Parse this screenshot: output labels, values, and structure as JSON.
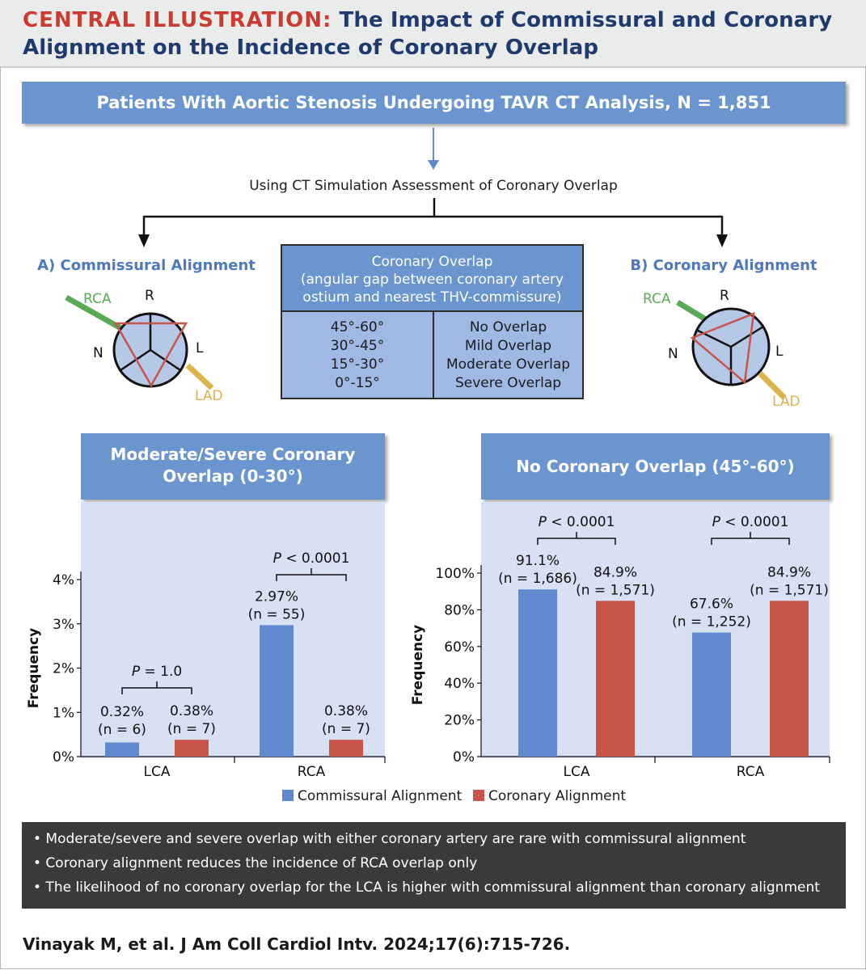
{
  "header": {
    "kicker": "CENTRAL ILLUSTRATION:",
    "title_line1": "The Impact of Commissural and Coronary",
    "title_line2": "Alignment on the Incidence of Coronary Overlap"
  },
  "top_box": "Patients With Aortic Stenosis Undergoing TAVR CT Analysis, N = 1,851",
  "method_text": "Using CT Simulation Assessment of Coronary Overlap",
  "diagram_a": {
    "title": "A) Commissural Alignment",
    "rca": "RCA",
    "lad": "LAD",
    "r": "R",
    "n": "N",
    "l": "L"
  },
  "diagram_b": {
    "title": "B) Coronary Alignment",
    "rca": "RCA",
    "lad": "LAD",
    "r": "R",
    "n": "N",
    "l": "L"
  },
  "overlap_table": {
    "header_line1": "Coronary Overlap",
    "header_line2": "(angular gap between coronary artery",
    "header_line3": "ostium and nearest THV-commissure)",
    "angles": [
      "45°-60°",
      "30°-45°",
      "15°-30°",
      "0°-15°"
    ],
    "categories": [
      "No Overlap",
      "Mild Overlap",
      "Moderate Overlap",
      "Severe Overlap"
    ]
  },
  "colors": {
    "commissural": "#5f8ad0",
    "coronary": "#c9554a",
    "header_blue": "#6a95cf",
    "panel_bg": "#d7e1f3",
    "title_red": "#cc3b2f",
    "title_navy": "#1f3a6e",
    "rca_green": "#5aaa55",
    "lad_yellow": "#dcb44c"
  },
  "chart_data": [
    {
      "type": "bar",
      "title_line1": "Moderate/Severe Coronary",
      "title_line2": "Overlap (0-30°)",
      "categories": [
        "LCA",
        "RCA"
      ],
      "ylabel": "Frequency",
      "ylim": [
        0,
        4
      ],
      "yticks": [
        0,
        1,
        2,
        3,
        4
      ],
      "ytick_labels": [
        "0%",
        "1%",
        "2%",
        "3%",
        "4%"
      ],
      "series": [
        {
          "name": "Commissural Alignment",
          "values": [
            0.32,
            2.97
          ],
          "labels": [
            "0.32%",
            "2.97%"
          ],
          "n_labels": [
            "(n = 6)",
            "(n = 55)"
          ]
        },
        {
          "name": "Coronary Alignment",
          "values": [
            0.38,
            0.38
          ],
          "labels": [
            "0.38%",
            "0.38%"
          ],
          "n_labels": [
            "(n = 7)",
            "(n = 7)"
          ]
        }
      ],
      "p_values": [
        {
          "p": "P",
          "text": " = 1.0"
        },
        {
          "p": "P",
          "text": " < 0.0001"
        }
      ]
    },
    {
      "type": "bar",
      "title_line1": "No Coronary Overlap (45°-60°)",
      "categories": [
        "LCA",
        "RCA"
      ],
      "ylabel": "Frequency",
      "ylim": [
        0,
        100
      ],
      "yticks": [
        0,
        20,
        40,
        60,
        80,
        100
      ],
      "ytick_labels": [
        "0%",
        "20%",
        "40%",
        "60%",
        "80%",
        "100%"
      ],
      "series": [
        {
          "name": "Commissural Alignment",
          "values": [
            91.1,
            67.6
          ],
          "labels": [
            "91.1%",
            "67.6%"
          ],
          "n_labels": [
            "(n = 1,686)",
            "(n = 1,252)"
          ]
        },
        {
          "name": "Coronary Alignment",
          "values": [
            84.9,
            84.9
          ],
          "labels": [
            "84.9%",
            "84.9%"
          ],
          "n_labels": [
            "(n = 1,571)",
            "(n = 1,571)"
          ]
        }
      ],
      "p_values": [
        {
          "p": "P",
          "text": " < 0.0001"
        },
        {
          "p": "P",
          "text": " < 0.0001"
        }
      ]
    }
  ],
  "legend": [
    "Commissural Alignment",
    "Coronary Alignment"
  ],
  "bullets": [
    "• Moderate/severe and severe overlap with either coronary artery are rare with commissural alignment",
    "• Coronary alignment reduces the incidence of RCA overlap only",
    "• The likelihood of no coronary overlap for the LCA is higher with commissural alignment than coronary alignment"
  ],
  "citation": "Vinayak M, et al. J Am Coll Cardiol Intv. 2024;17(6):715-726."
}
